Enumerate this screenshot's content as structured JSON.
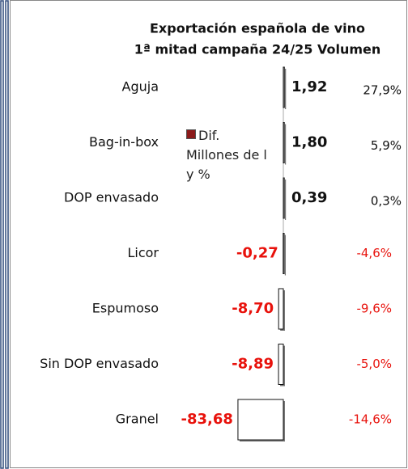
{
  "chart_data": {
    "type": "bar",
    "title": "Exportación española de vino",
    "subtitle": "1ª mitad campaña 24/25 Volumen",
    "legend": "Dif. Millones de l y %",
    "legend_color": "#8b1a1a",
    "color": "#ffffff",
    "categories": [
      "Aguja",
      "Bag-in-box",
      "DOP envasado",
      "Licor",
      "Espumoso",
      "Sin DOP envasado",
      "Granel"
    ],
    "values": [
      1.92,
      1.8,
      0.39,
      -0.27,
      -8.7,
      -8.89,
      -83.68
    ],
    "value_labels": [
      "1,92",
      "1,80",
      "0,39",
      "-0,27",
      "-8,70",
      "-8,89",
      "-83,68"
    ],
    "changes": [
      27.9,
      5.9,
      0.3,
      -4.6,
      -9.6,
      -5.0,
      -14.6
    ],
    "change_labels": [
      "27,9%",
      "5,9%",
      "0,3%",
      "-4,6%",
      "-9,6%",
      "-5,0%",
      "-14,6%"
    ]
  }
}
